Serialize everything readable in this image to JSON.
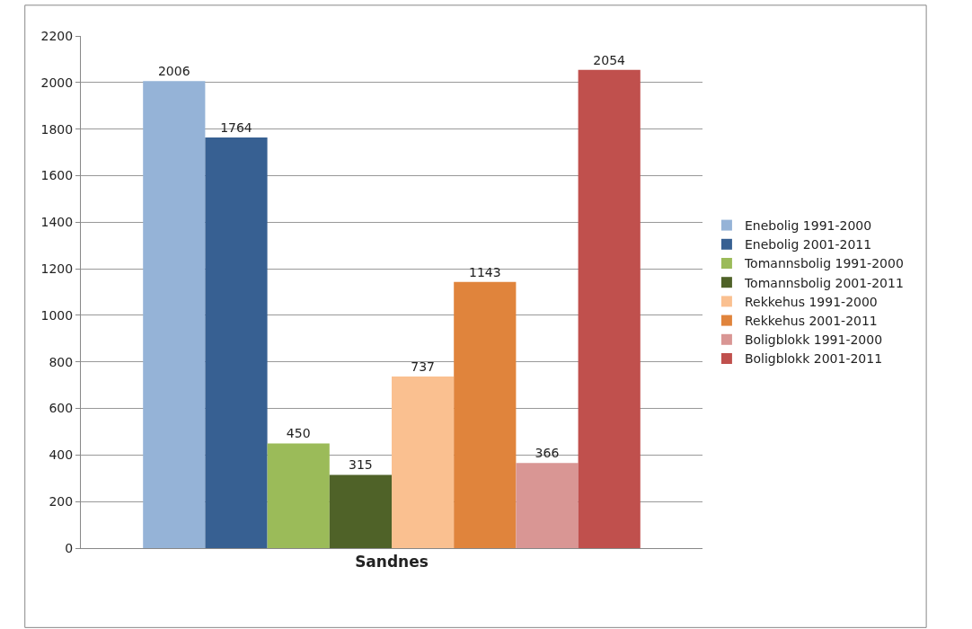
{
  "chart_data": {
    "type": "bar",
    "categories": [
      "Sandnes"
    ],
    "series": [
      {
        "name": "Enebolig 1991-2000",
        "color": "#95b3d7",
        "values": [
          2006
        ]
      },
      {
        "name": "Enebolig 2001-2011",
        "color": "#376092",
        "values": [
          1764
        ]
      },
      {
        "name": "Tomannsbolig 1991-2000",
        "color": "#9bbb59",
        "values": [
          450
        ]
      },
      {
        "name": "Tomannsbolig 2001-2011",
        "color": "#4f6228",
        "values": [
          315
        ]
      },
      {
        "name": "Rekkehus 1991-2000",
        "color": "#fac090",
        "values": [
          737
        ]
      },
      {
        "name": "Rekkehus 2001-2011",
        "color": "#e0843c",
        "values": [
          1143
        ]
      },
      {
        "name": "Boligblokk 1991-2000",
        "color": "#d99694",
        "values": [
          366
        ]
      },
      {
        "name": "Boligblokk 2001-2011",
        "color": "#c0504d",
        "values": [
          2054
        ]
      }
    ],
    "ylim": [
      0,
      2200
    ],
    "yticks": [
      0,
      200,
      400,
      600,
      800,
      1000,
      1200,
      1400,
      1600,
      1800,
      2000,
      2200
    ],
    "grid": "y",
    "legend": "right",
    "data_labels": true
  }
}
